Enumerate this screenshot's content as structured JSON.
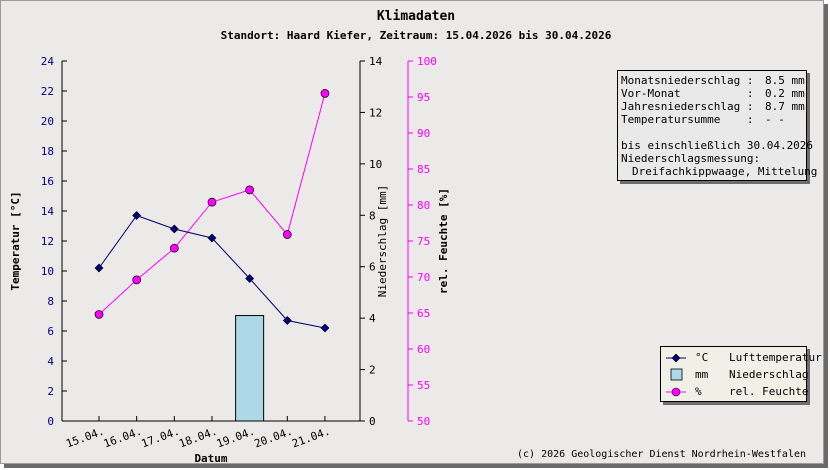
{
  "title": "Klimadaten",
  "subtitle": "Standort: Haard Kiefer, Zeitraum: 15.04.2026 bis 30.04.2026",
  "footer": "(c) 2026 Geologischer Dienst Nordrhein-Westfalen",
  "colors": {
    "background": "#ece9e9",
    "temperature": "#000066",
    "temperature_marker": "#000080",
    "precipitation_fill": "#add8e6",
    "humidity": "#ff00ff",
    "humidity_axis": "#ff00ff",
    "temperature_axis_text": "#000080"
  },
  "info": {
    "rows": [
      {
        "label": "Monatsniederschlag :",
        "value": "8.5 mm"
      },
      {
        "label": "Vor-Monat          :",
        "value": "0.2 mm"
      },
      {
        "label": "Jahresniederschlag :",
        "value": "8.7 mm"
      },
      {
        "label": "Temperatursumme    :",
        "value": "- -"
      }
    ],
    "note1": "bis einschließlich 30.04.2026",
    "note2": "Niederschlagsmessung:",
    "note3": "Dreifachkippwaage, Mittelung"
  },
  "legend": [
    {
      "unit": "°C",
      "name": "Lufttemperatur",
      "icon": "diamond-marker"
    },
    {
      "unit": "mm",
      "name": "Niederschlag",
      "icon": "bar-swatch"
    },
    {
      "unit": "%",
      "name": "rel. Feuchte",
      "icon": "circle-marker"
    }
  ],
  "chart_data": {
    "type": "line",
    "categories": [
      "15.04.",
      "16.04.",
      "17.04.",
      "18.04.",
      "19.04.",
      "20.04.",
      "21.04."
    ],
    "xlabel": "Datum",
    "axes": {
      "temperature": {
        "label": "Temperatur [°C]",
        "min": 0,
        "max": 24,
        "step": 2,
        "ticks": [
          "0",
          "2",
          "4",
          "6",
          "8",
          "10",
          "12",
          "14",
          "16",
          "18",
          "20",
          "22",
          "24"
        ]
      },
      "precipitation": {
        "label": "Niederschlag [mm]",
        "min": 0,
        "max": 14,
        "step": 2,
        "ticks": [
          "0",
          "2",
          "4",
          "6",
          "8",
          "10",
          "12",
          "14"
        ]
      },
      "humidity": {
        "label": "rel. Feuchte [%]",
        "min": 50,
        "max": 100,
        "step": 5,
        "ticks": [
          "50",
          "55",
          "60",
          "65",
          "70",
          "75",
          "80",
          "85",
          "90",
          "95",
          "100"
        ]
      }
    },
    "series": [
      {
        "name": "Lufttemperatur",
        "unit": "°C",
        "type": "line",
        "axis": "temperature",
        "values": [
          10.2,
          13.7,
          12.8,
          12.2,
          9.5,
          6.7,
          6.2
        ]
      },
      {
        "name": "Niederschlag",
        "unit": "mm",
        "type": "bar",
        "axis": "precipitation",
        "values": [
          0,
          0,
          0,
          0,
          4.1,
          0,
          0
        ]
      },
      {
        "name": "rel. Feuchte",
        "unit": "%",
        "type": "line",
        "axis": "humidity",
        "values": [
          64.8,
          69.6,
          74.0,
          80.4,
          82.1,
          75.9,
          95.5
        ]
      }
    ],
    "grid": false,
    "legend_position": "bottom-right"
  }
}
